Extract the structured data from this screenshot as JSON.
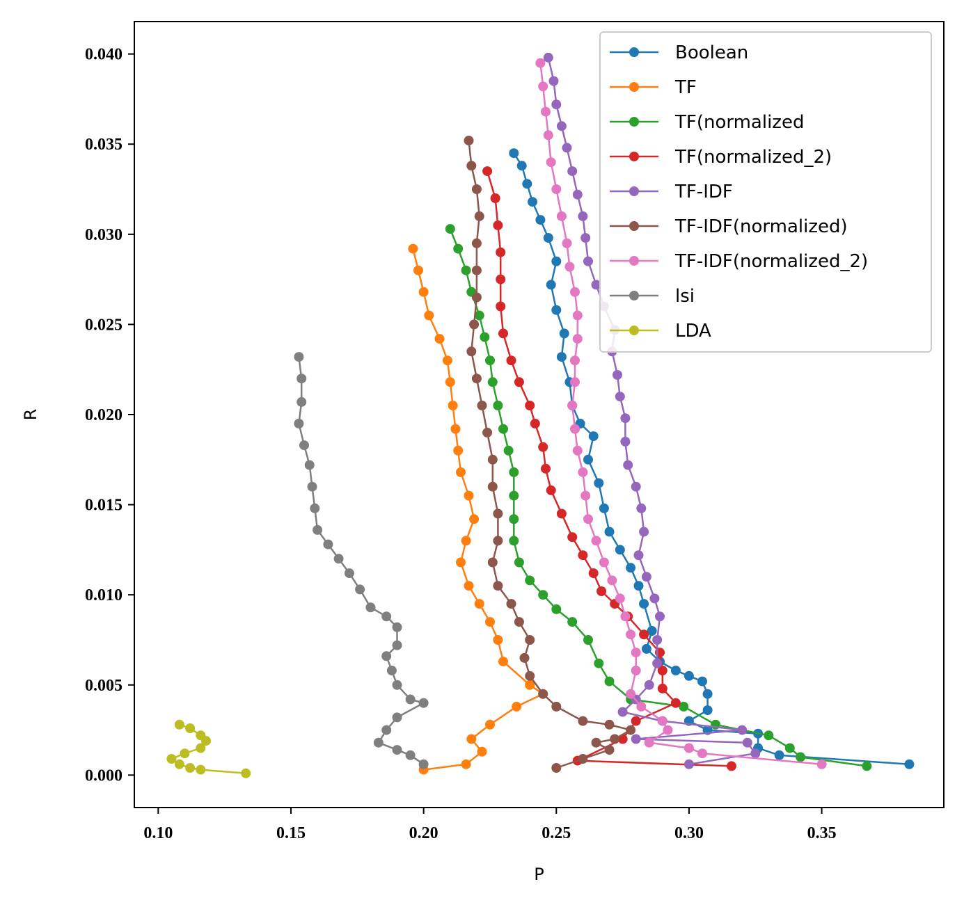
{
  "chart_data": {
    "type": "line",
    "title": "",
    "xlabel": "P",
    "ylabel": "R",
    "xlim": [
      0.091,
      0.396
    ],
    "ylim": [
      -0.0018,
      0.0418
    ],
    "xticks": [
      "0.10",
      "0.15",
      "0.20",
      "0.25",
      "0.30",
      "0.35"
    ],
    "yticks": [
      "0.000",
      "0.005",
      "0.010",
      "0.015",
      "0.020",
      "0.025",
      "0.030",
      "0.035",
      "0.040"
    ],
    "grid": false,
    "legend": "top-right",
    "series": [
      {
        "name": "Boolean",
        "color": "#1f77b4",
        "points": [
          [
            0.234,
            0.0345
          ],
          [
            0.237,
            0.0338
          ],
          [
            0.239,
            0.0328
          ],
          [
            0.241,
            0.0318
          ],
          [
            0.244,
            0.0308
          ],
          [
            0.247,
            0.0298
          ],
          [
            0.25,
            0.0285
          ],
          [
            0.248,
            0.0272
          ],
          [
            0.25,
            0.0258
          ],
          [
            0.253,
            0.0245
          ],
          [
            0.252,
            0.0232
          ],
          [
            0.255,
            0.0218
          ],
          [
            0.256,
            0.0205
          ],
          [
            0.259,
            0.0195
          ],
          [
            0.264,
            0.0188
          ],
          [
            0.262,
            0.0175
          ],
          [
            0.266,
            0.0162
          ],
          [
            0.268,
            0.0148
          ],
          [
            0.27,
            0.0135
          ],
          [
            0.274,
            0.0125
          ],
          [
            0.278,
            0.0115
          ],
          [
            0.281,
            0.0105
          ],
          [
            0.283,
            0.0095
          ],
          [
            0.286,
            0.008
          ],
          [
            0.284,
            0.007
          ],
          [
            0.289,
            0.0063
          ],
          [
            0.295,
            0.0058
          ],
          [
            0.3,
            0.0055
          ],
          [
            0.305,
            0.0052
          ],
          [
            0.307,
            0.0045
          ],
          [
            0.307,
            0.0036
          ],
          [
            0.3,
            0.003
          ],
          [
            0.307,
            0.0025
          ],
          [
            0.326,
            0.0023
          ],
          [
            0.326,
            0.0015
          ],
          [
            0.334,
            0.0011
          ],
          [
            0.383,
            0.0006
          ]
        ]
      },
      {
        "name": "TF",
        "color": "#ff7f0e",
        "points": [
          [
            0.196,
            0.0292
          ],
          [
            0.198,
            0.028
          ],
          [
            0.2,
            0.0268
          ],
          [
            0.202,
            0.0255
          ],
          [
            0.206,
            0.0242
          ],
          [
            0.209,
            0.023
          ],
          [
            0.21,
            0.0218
          ],
          [
            0.211,
            0.0205
          ],
          [
            0.212,
            0.0192
          ],
          [
            0.213,
            0.018
          ],
          [
            0.214,
            0.0168
          ],
          [
            0.217,
            0.0155
          ],
          [
            0.219,
            0.0142
          ],
          [
            0.216,
            0.013
          ],
          [
            0.214,
            0.0118
          ],
          [
            0.217,
            0.0105
          ],
          [
            0.221,
            0.0095
          ],
          [
            0.225,
            0.0085
          ],
          [
            0.228,
            0.0075
          ],
          [
            0.23,
            0.0063
          ],
          [
            0.24,
            0.005
          ],
          [
            0.245,
            0.0045
          ],
          [
            0.235,
            0.0038
          ],
          [
            0.225,
            0.0028
          ],
          [
            0.218,
            0.002
          ],
          [
            0.222,
            0.0013
          ],
          [
            0.216,
            0.0006
          ],
          [
            0.2,
            0.0003
          ]
        ]
      },
      {
        "name": "TF(normalized",
        "color": "#2ca02c",
        "points": [
          [
            0.21,
            0.0303
          ],
          [
            0.213,
            0.0292
          ],
          [
            0.216,
            0.028
          ],
          [
            0.218,
            0.0268
          ],
          [
            0.221,
            0.0255
          ],
          [
            0.223,
            0.0243
          ],
          [
            0.225,
            0.023
          ],
          [
            0.226,
            0.0218
          ],
          [
            0.228,
            0.0205
          ],
          [
            0.23,
            0.0192
          ],
          [
            0.232,
            0.018
          ],
          [
            0.234,
            0.0168
          ],
          [
            0.234,
            0.0155
          ],
          [
            0.234,
            0.0142
          ],
          [
            0.234,
            0.013
          ],
          [
            0.236,
            0.0118
          ],
          [
            0.24,
            0.0108
          ],
          [
            0.245,
            0.01
          ],
          [
            0.25,
            0.0092
          ],
          [
            0.256,
            0.0085
          ],
          [
            0.262,
            0.0075
          ],
          [
            0.266,
            0.0062
          ],
          [
            0.27,
            0.0052
          ],
          [
            0.278,
            0.0042
          ],
          [
            0.298,
            0.0038
          ],
          [
            0.31,
            0.0028
          ],
          [
            0.33,
            0.0022
          ],
          [
            0.338,
            0.0015
          ],
          [
            0.342,
            0.001
          ],
          [
            0.367,
            0.0005
          ]
        ]
      },
      {
        "name": "TF(normalized_2)",
        "color": "#d62728",
        "points": [
          [
            0.224,
            0.0335
          ],
          [
            0.227,
            0.032
          ],
          [
            0.228,
            0.0305
          ],
          [
            0.229,
            0.029
          ],
          [
            0.229,
            0.0275
          ],
          [
            0.229,
            0.026
          ],
          [
            0.23,
            0.0245
          ],
          [
            0.233,
            0.023
          ],
          [
            0.236,
            0.0218
          ],
          [
            0.24,
            0.0205
          ],
          [
            0.242,
            0.0195
          ],
          [
            0.245,
            0.0182
          ],
          [
            0.246,
            0.017
          ],
          [
            0.248,
            0.0158
          ],
          [
            0.252,
            0.0145
          ],
          [
            0.256,
            0.0132
          ],
          [
            0.26,
            0.0122
          ],
          [
            0.264,
            0.0112
          ],
          [
            0.267,
            0.0102
          ],
          [
            0.272,
            0.0095
          ],
          [
            0.277,
            0.0088
          ],
          [
            0.283,
            0.0078
          ],
          [
            0.289,
            0.0068
          ],
          [
            0.29,
            0.0058
          ],
          [
            0.29,
            0.0048
          ],
          [
            0.295,
            0.004
          ],
          [
            0.28,
            0.003
          ],
          [
            0.275,
            0.002
          ],
          [
            0.258,
            0.0008
          ],
          [
            0.316,
            0.0005
          ]
        ]
      },
      {
        "name": "TF-IDF",
        "color": "#9467bd",
        "points": [
          [
            0.247,
            0.0398
          ],
          [
            0.249,
            0.0385
          ],
          [
            0.25,
            0.0372
          ],
          [
            0.252,
            0.036
          ],
          [
            0.254,
            0.0348
          ],
          [
            0.256,
            0.0335
          ],
          [
            0.258,
            0.0322
          ],
          [
            0.26,
            0.031
          ],
          [
            0.261,
            0.0298
          ],
          [
            0.262,
            0.0285
          ],
          [
            0.265,
            0.0272
          ],
          [
            0.268,
            0.026
          ],
          [
            0.272,
            0.0247
          ],
          [
            0.271,
            0.0235
          ],
          [
            0.273,
            0.0222
          ],
          [
            0.274,
            0.021
          ],
          [
            0.276,
            0.0198
          ],
          [
            0.276,
            0.0185
          ],
          [
            0.277,
            0.0172
          ],
          [
            0.28,
            0.016
          ],
          [
            0.282,
            0.0148
          ],
          [
            0.283,
            0.0135
          ],
          [
            0.281,
            0.0122
          ],
          [
            0.284,
            0.011
          ],
          [
            0.287,
            0.0098
          ],
          [
            0.289,
            0.0088
          ],
          [
            0.288,
            0.0075
          ],
          [
            0.288,
            0.0062
          ],
          [
            0.285,
            0.005
          ],
          [
            0.28,
            0.0042
          ],
          [
            0.275,
            0.0035
          ],
          [
            0.29,
            0.003
          ],
          [
            0.32,
            0.0025
          ],
          [
            0.28,
            0.002
          ],
          [
            0.322,
            0.0018
          ],
          [
            0.325,
            0.0012
          ],
          [
            0.3,
            0.0006
          ]
        ]
      },
      {
        "name": "TF-IDF(normalized)",
        "color": "#8c564b",
        "points": [
          [
            0.217,
            0.0352
          ],
          [
            0.218,
            0.0338
          ],
          [
            0.22,
            0.0325
          ],
          [
            0.221,
            0.031
          ],
          [
            0.22,
            0.0295
          ],
          [
            0.22,
            0.028
          ],
          [
            0.22,
            0.0265
          ],
          [
            0.219,
            0.025
          ],
          [
            0.218,
            0.0235
          ],
          [
            0.22,
            0.022
          ],
          [
            0.222,
            0.0205
          ],
          [
            0.224,
            0.019
          ],
          [
            0.226,
            0.0175
          ],
          [
            0.226,
            0.016
          ],
          [
            0.228,
            0.0145
          ],
          [
            0.228,
            0.013
          ],
          [
            0.226,
            0.0118
          ],
          [
            0.228,
            0.0105
          ],
          [
            0.233,
            0.0095
          ],
          [
            0.236,
            0.0085
          ],
          [
            0.24,
            0.0075
          ],
          [
            0.238,
            0.0065
          ],
          [
            0.24,
            0.0055
          ],
          [
            0.245,
            0.0045
          ],
          [
            0.25,
            0.0038
          ],
          [
            0.26,
            0.003
          ],
          [
            0.27,
            0.0028
          ],
          [
            0.278,
            0.0025
          ],
          [
            0.272,
            0.002
          ],
          [
            0.265,
            0.0018
          ],
          [
            0.27,
            0.0014
          ],
          [
            0.26,
            0.0009
          ],
          [
            0.25,
            0.0004
          ]
        ]
      },
      {
        "name": "TF-IDF(normalized_2)",
        "color": "#e377c2",
        "points": [
          [
            0.244,
            0.0395
          ],
          [
            0.245,
            0.0382
          ],
          [
            0.246,
            0.0368
          ],
          [
            0.247,
            0.0355
          ],
          [
            0.248,
            0.034
          ],
          [
            0.25,
            0.0325
          ],
          [
            0.252,
            0.031
          ],
          [
            0.254,
            0.0295
          ],
          [
            0.255,
            0.0282
          ],
          [
            0.257,
            0.0268
          ],
          [
            0.258,
            0.0255
          ],
          [
            0.258,
            0.0242
          ],
          [
            0.257,
            0.023
          ],
          [
            0.257,
            0.0218
          ],
          [
            0.256,
            0.0205
          ],
          [
            0.257,
            0.0192
          ],
          [
            0.258,
            0.018
          ],
          [
            0.26,
            0.0168
          ],
          [
            0.261,
            0.0155
          ],
          [
            0.262,
            0.0142
          ],
          [
            0.265,
            0.013
          ],
          [
            0.268,
            0.0118
          ],
          [
            0.271,
            0.0108
          ],
          [
            0.274,
            0.0098
          ],
          [
            0.276,
            0.0088
          ],
          [
            0.278,
            0.0078
          ],
          [
            0.28,
            0.0068
          ],
          [
            0.28,
            0.0058
          ],
          [
            0.278,
            0.0045
          ],
          [
            0.282,
            0.0038
          ],
          [
            0.29,
            0.003
          ],
          [
            0.292,
            0.0025
          ],
          [
            0.285,
            0.0018
          ],
          [
            0.3,
            0.0015
          ],
          [
            0.305,
            0.0012
          ],
          [
            0.35,
            0.0006
          ]
        ]
      },
      {
        "name": "lsi",
        "color": "#7f7f7f",
        "points": [
          [
            0.153,
            0.0232
          ],
          [
            0.154,
            0.022
          ],
          [
            0.154,
            0.0207
          ],
          [
            0.153,
            0.0195
          ],
          [
            0.155,
            0.0183
          ],
          [
            0.157,
            0.0172
          ],
          [
            0.158,
            0.016
          ],
          [
            0.159,
            0.0148
          ],
          [
            0.16,
            0.0136
          ],
          [
            0.164,
            0.0128
          ],
          [
            0.168,
            0.012
          ],
          [
            0.172,
            0.0112
          ],
          [
            0.176,
            0.0103
          ],
          [
            0.18,
            0.0093
          ],
          [
            0.186,
            0.0088
          ],
          [
            0.19,
            0.0082
          ],
          [
            0.19,
            0.0072
          ],
          [
            0.186,
            0.0066
          ],
          [
            0.188,
            0.0058
          ],
          [
            0.19,
            0.005
          ],
          [
            0.195,
            0.0042
          ],
          [
            0.2,
            0.004
          ],
          [
            0.19,
            0.0032
          ],
          [
            0.186,
            0.0025
          ],
          [
            0.183,
            0.0018
          ],
          [
            0.19,
            0.0014
          ],
          [
            0.195,
            0.0011
          ],
          [
            0.2,
            0.0006
          ]
        ]
      },
      {
        "name": "LDA",
        "color": "#bcbd22",
        "points": [
          [
            0.108,
            0.0028
          ],
          [
            0.112,
            0.0026
          ],
          [
            0.116,
            0.0022
          ],
          [
            0.118,
            0.0019
          ],
          [
            0.116,
            0.0015
          ],
          [
            0.11,
            0.0012
          ],
          [
            0.105,
            0.0009
          ],
          [
            0.108,
            0.0006
          ],
          [
            0.112,
            0.0004
          ],
          [
            0.116,
            0.0003
          ],
          [
            0.133,
            0.0001
          ]
        ]
      }
    ]
  }
}
